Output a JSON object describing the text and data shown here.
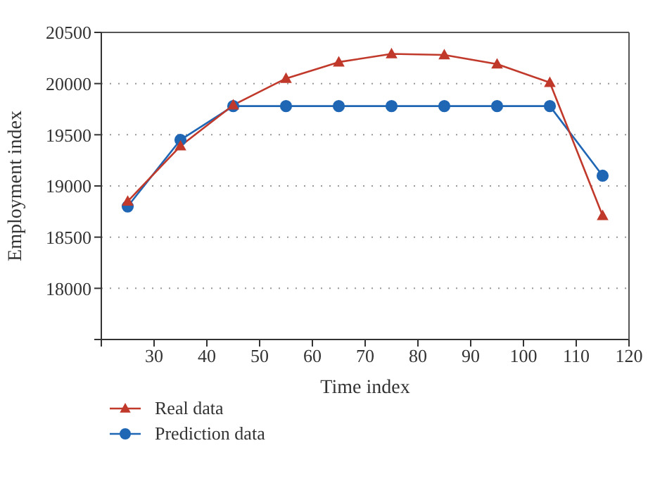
{
  "chart_data": {
    "type": "line",
    "xlabel": "Time index",
    "ylabel": "Employment index",
    "x": [
      25,
      35,
      45,
      55,
      65,
      75,
      85,
      95,
      105,
      115
    ],
    "series": [
      {
        "name": "Real data",
        "color": "#c0392b",
        "marker": "triangle",
        "values": [
          18850,
          19390,
          19790,
          20050,
          20210,
          20290,
          20280,
          20190,
          20010,
          18710
        ]
      },
      {
        "name": "Prediction data",
        "color": "#1f66b4",
        "marker": "circle",
        "values": [
          18800,
          19450,
          19780,
          19780,
          19780,
          19780,
          19780,
          19780,
          19780,
          19100
        ]
      }
    ],
    "xlim": [
      20,
      120
    ],
    "xticks": [
      {
        "value": 20,
        "label": null
      },
      30,
      40,
      50,
      60,
      70,
      80,
      90,
      100,
      110,
      120
    ],
    "ylim": [
      17500,
      20500
    ],
    "yticks": [
      {
        "value": 17500,
        "label": null
      },
      18000,
      18500,
      19000,
      19500,
      20000,
      20500
    ],
    "grid": "y",
    "legend": "bottom left",
    "line_style": "solid"
  }
}
